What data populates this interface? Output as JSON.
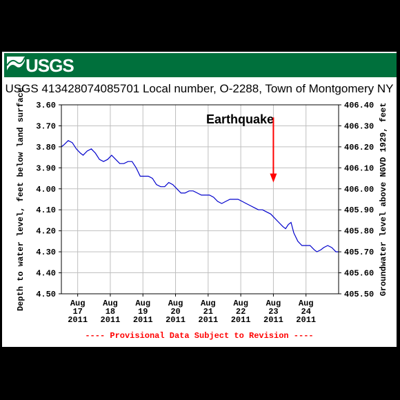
{
  "header": {
    "logo_text": "USGS",
    "title": "USGS 413428074085701 Local number, O-2288, Town of Montgomery NY",
    "banner_color": "#00703c"
  },
  "footer": {
    "notice": "---- Provisional Data Subject to Revision ----"
  },
  "chart_data": {
    "type": "line",
    "title": "USGS 413428074085701 Local number, O-2288, Town of Montgomery NY",
    "ylabel": "Depth to water level, feet below land surface",
    "y2label": "Groundwater level above NGVD 1929, feet",
    "ylim": [
      3.6,
      4.5
    ],
    "y_inverted": true,
    "y_ticks": [
      "3.60",
      "3.70",
      "3.80",
      "3.90",
      "4.00",
      "4.10",
      "4.20",
      "4.30",
      "4.40",
      "4.50"
    ],
    "y2lim": [
      405.5,
      406.4
    ],
    "y2_ticks": [
      "406.40",
      "406.30",
      "406.20",
      "406.10",
      "406.00",
      "405.90",
      "405.80",
      "405.70",
      "405.60",
      "405.50"
    ],
    "xlim": [
      "2011-08-16T12:00",
      "2011-08-25T00:00"
    ],
    "x_ticks": [
      {
        "x": "2011-08-17",
        "label": [
          "Aug",
          "17",
          "2011"
        ]
      },
      {
        "x": "2011-08-18",
        "label": [
          "Aug",
          "18",
          "2011"
        ]
      },
      {
        "x": "2011-08-19",
        "label": [
          "Aug",
          "19",
          "2011"
        ]
      },
      {
        "x": "2011-08-20",
        "label": [
          "Aug",
          "20",
          "2011"
        ]
      },
      {
        "x": "2011-08-21",
        "label": [
          "Aug",
          "21",
          "2011"
        ]
      },
      {
        "x": "2011-08-22",
        "label": [
          "Aug",
          "22",
          "2011"
        ]
      },
      {
        "x": "2011-08-23",
        "label": [
          "Aug",
          "23",
          "2011"
        ]
      },
      {
        "x": "2011-08-24",
        "label": [
          "Aug",
          "24",
          "2011"
        ]
      }
    ],
    "grid": true,
    "series": [
      {
        "color": "#0000cc",
        "points": [
          [
            "2011-08-16T12:00",
            3.8
          ],
          [
            "2011-08-16T14:00",
            3.79
          ],
          [
            "2011-08-16T17:00",
            3.77
          ],
          [
            "2011-08-16T20:00",
            3.78
          ],
          [
            "2011-08-16T23:00",
            3.81
          ],
          [
            "2011-08-17T02:00",
            3.83
          ],
          [
            "2011-08-17T04:00",
            3.84
          ],
          [
            "2011-08-17T07:00",
            3.82
          ],
          [
            "2011-08-17T10:00",
            3.81
          ],
          [
            "2011-08-17T13:00",
            3.83
          ],
          [
            "2011-08-17T16:00",
            3.86
          ],
          [
            "2011-08-17T19:00",
            3.87
          ],
          [
            "2011-08-17T22:00",
            3.86
          ],
          [
            "2011-08-18T01:00",
            3.84
          ],
          [
            "2011-08-18T04:00",
            3.86
          ],
          [
            "2011-08-18T07:00",
            3.88
          ],
          [
            "2011-08-18T10:00",
            3.88
          ],
          [
            "2011-08-18T13:00",
            3.87
          ],
          [
            "2011-08-18T16:00",
            3.87
          ],
          [
            "2011-08-18T19:00",
            3.9
          ],
          [
            "2011-08-18T22:00",
            3.94
          ],
          [
            "2011-08-19T01:00",
            3.94
          ],
          [
            "2011-08-19T04:00",
            3.94
          ],
          [
            "2011-08-19T07:00",
            3.95
          ],
          [
            "2011-08-19T10:00",
            3.98
          ],
          [
            "2011-08-19T13:00",
            3.99
          ],
          [
            "2011-08-19T16:00",
            3.99
          ],
          [
            "2011-08-19T19:00",
            3.97
          ],
          [
            "2011-08-19T22:00",
            3.98
          ],
          [
            "2011-08-20T01:00",
            4.0
          ],
          [
            "2011-08-20T04:00",
            4.02
          ],
          [
            "2011-08-20T07:00",
            4.02
          ],
          [
            "2011-08-20T10:00",
            4.01
          ],
          [
            "2011-08-20T13:00",
            4.01
          ],
          [
            "2011-08-20T16:00",
            4.02
          ],
          [
            "2011-08-20T19:00",
            4.03
          ],
          [
            "2011-08-20T22:00",
            4.03
          ],
          [
            "2011-08-21T01:00",
            4.03
          ],
          [
            "2011-08-21T04:00",
            4.04
          ],
          [
            "2011-08-21T07:00",
            4.06
          ],
          [
            "2011-08-21T10:00",
            4.07
          ],
          [
            "2011-08-21T13:00",
            4.06
          ],
          [
            "2011-08-21T16:00",
            4.05
          ],
          [
            "2011-08-21T19:00",
            4.05
          ],
          [
            "2011-08-21T22:00",
            4.05
          ],
          [
            "2011-08-22T01:00",
            4.06
          ],
          [
            "2011-08-22T04:00",
            4.07
          ],
          [
            "2011-08-22T07:00",
            4.08
          ],
          [
            "2011-08-22T10:00",
            4.09
          ],
          [
            "2011-08-22T13:00",
            4.1
          ],
          [
            "2011-08-22T16:00",
            4.1
          ],
          [
            "2011-08-22T19:00",
            4.11
          ],
          [
            "2011-08-22T22:00",
            4.12
          ],
          [
            "2011-08-23T01:00",
            4.14
          ],
          [
            "2011-08-23T04:00",
            4.16
          ],
          [
            "2011-08-23T07:00",
            4.18
          ],
          [
            "2011-08-23T09:00",
            4.19
          ],
          [
            "2011-08-23T11:00",
            4.17
          ],
          [
            "2011-08-23T13:00",
            4.16
          ],
          [
            "2011-08-23T15:00",
            4.21
          ],
          [
            "2011-08-23T18:00",
            4.25
          ],
          [
            "2011-08-23T21:00",
            4.27
          ],
          [
            "2011-08-24T00:00",
            4.27
          ],
          [
            "2011-08-24T03:00",
            4.27
          ],
          [
            "2011-08-24T06:00",
            4.29
          ],
          [
            "2011-08-24T08:00",
            4.3
          ],
          [
            "2011-08-24T11:00",
            4.29
          ],
          [
            "2011-08-24T13:00",
            4.28
          ],
          [
            "2011-08-24T16:00",
            4.27
          ],
          [
            "2011-08-24T19:00",
            4.28
          ],
          [
            "2011-08-24T22:00",
            4.3
          ],
          [
            "2011-08-25T00:00",
            4.3
          ]
        ]
      }
    ],
    "annotations": [
      {
        "text": "Earthquake",
        "color": "#000000"
      },
      {
        "type": "arrow",
        "color": "#ff0000",
        "x": "2011-08-23T00:00",
        "y_from": 3.66,
        "y_to": 3.97
      }
    ]
  }
}
